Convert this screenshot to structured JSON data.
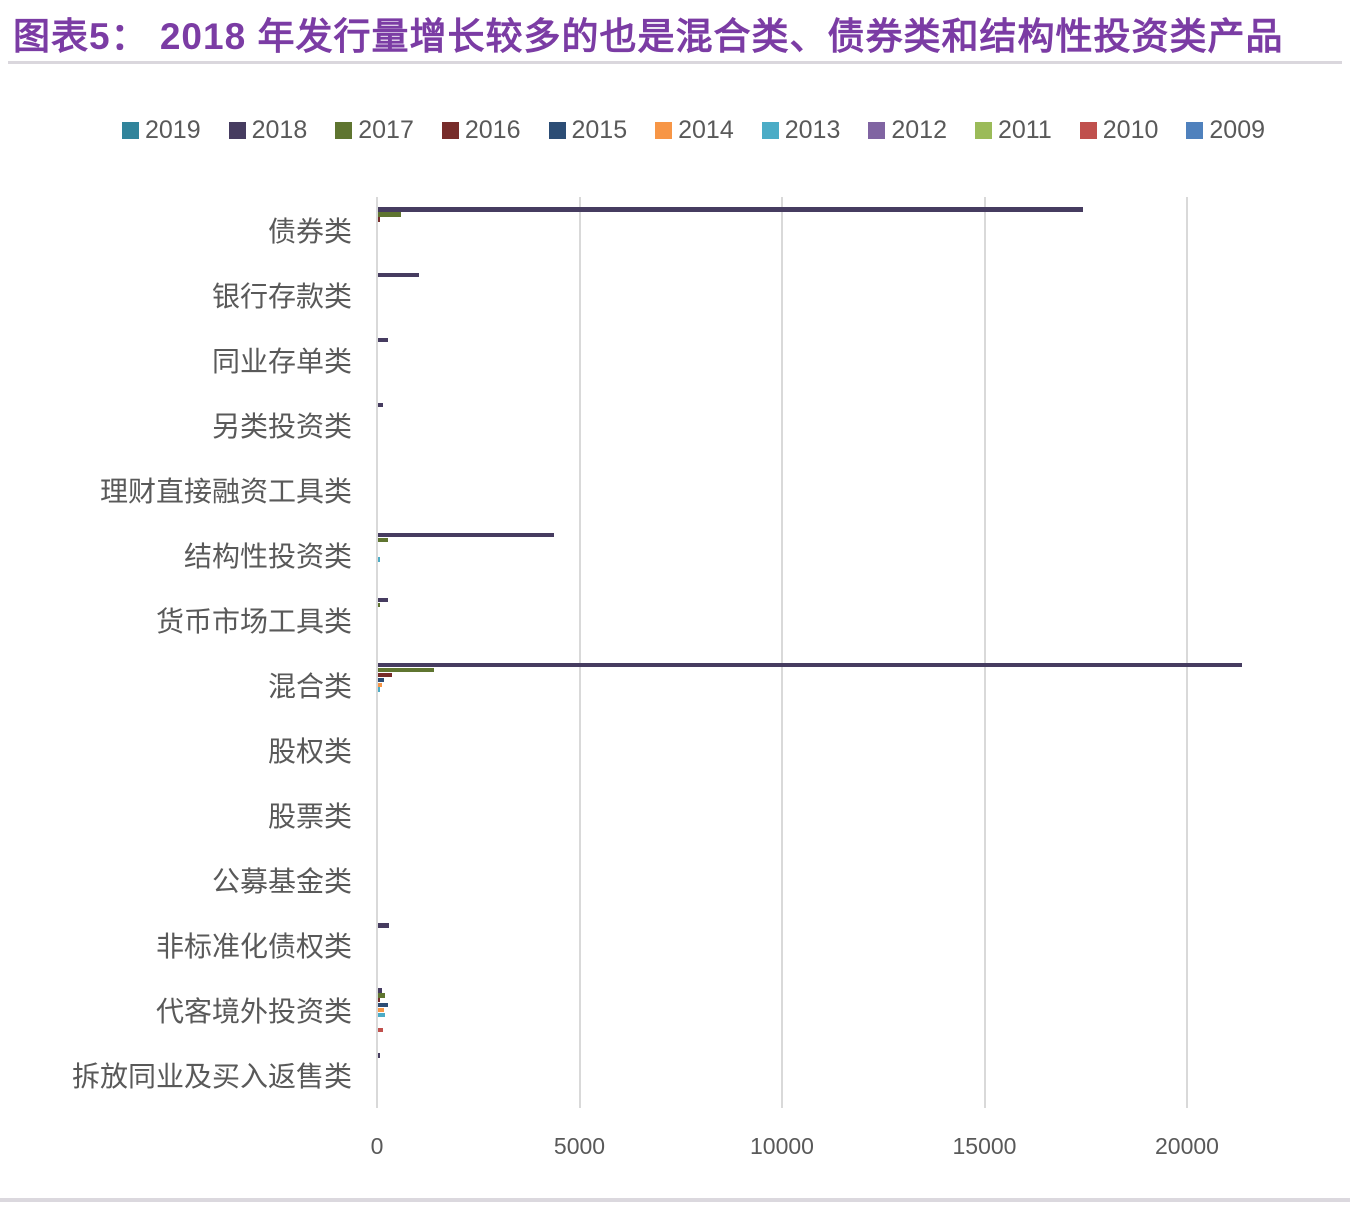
{
  "title": "图表5： 2018 年发行量增长较多的也是混合类、债券类和结构性投资类产品",
  "accent_color": "#7B3CA4",
  "chart_data": {
    "type": "bar",
    "orientation": "horizontal",
    "title": "图表5： 2018 年发行量增长较多的也是混合类、债券类和结构性投资类产品",
    "categories": [
      "债券类",
      "银行存款类",
      "同业存单类",
      "另类投资类",
      "理财直接融资工具类",
      "结构性投资类",
      "货币市场工具类",
      "混合类",
      "股权类",
      "股票类",
      "公募基金类",
      "非标准化债权类",
      "代客境外投资类",
      "拆放同业及买入返售类"
    ],
    "series": [
      {
        "name": "2019",
        "color": "#31849B",
        "values": [
          0,
          0,
          0,
          0,
          0,
          0,
          0,
          0,
          0,
          0,
          0,
          0,
          0,
          0
        ]
      },
      {
        "name": "2018",
        "color": "#463C60",
        "values": [
          17400,
          1000,
          240,
          120,
          0,
          4350,
          240,
          21330,
          0,
          0,
          0,
          280,
          90,
          50
        ]
      },
      {
        "name": "2017",
        "color": "#5F7530",
        "values": [
          570,
          0,
          0,
          0,
          0,
          250,
          50,
          1380,
          0,
          0,
          0,
          0,
          170,
          0
        ]
      },
      {
        "name": "2016",
        "color": "#772C2A",
        "values": [
          50,
          0,
          0,
          0,
          0,
          0,
          0,
          350,
          0,
          0,
          0,
          0,
          60,
          0
        ]
      },
      {
        "name": "2015",
        "color": "#2C4D75",
        "values": [
          0,
          0,
          0,
          0,
          0,
          0,
          0,
          150,
          0,
          0,
          0,
          0,
          240,
          0
        ]
      },
      {
        "name": "2014",
        "color": "#F79646",
        "values": [
          0,
          0,
          0,
          0,
          0,
          0,
          0,
          100,
          0,
          0,
          0,
          0,
          160,
          0
        ]
      },
      {
        "name": "2013",
        "color": "#4BACC6",
        "values": [
          0,
          0,
          0,
          0,
          0,
          40,
          0,
          40,
          0,
          0,
          0,
          0,
          180,
          0
        ]
      },
      {
        "name": "2012",
        "color": "#8064A2",
        "values": [
          0,
          0,
          0,
          0,
          0,
          0,
          0,
          0,
          0,
          0,
          0,
          0,
          0,
          0
        ]
      },
      {
        "name": "2011",
        "color": "#9BBB59",
        "values": [
          0,
          0,
          0,
          0,
          0,
          0,
          0,
          0,
          0,
          0,
          0,
          0,
          0,
          0
        ]
      },
      {
        "name": "2010",
        "color": "#C0504D",
        "values": [
          0,
          0,
          0,
          0,
          0,
          0,
          0,
          0,
          0,
          0,
          0,
          0,
          120,
          0
        ]
      },
      {
        "name": "2009",
        "color": "#4F81BD",
        "values": [
          0,
          0,
          0,
          0,
          0,
          0,
          0,
          0,
          0,
          0,
          0,
          0,
          0,
          0
        ]
      }
    ],
    "xticks": [
      0,
      5000,
      10000,
      15000,
      20000
    ],
    "xlim": [
      0,
      22000
    ],
    "grid": "vertical-major",
    "legend_position": "top"
  }
}
